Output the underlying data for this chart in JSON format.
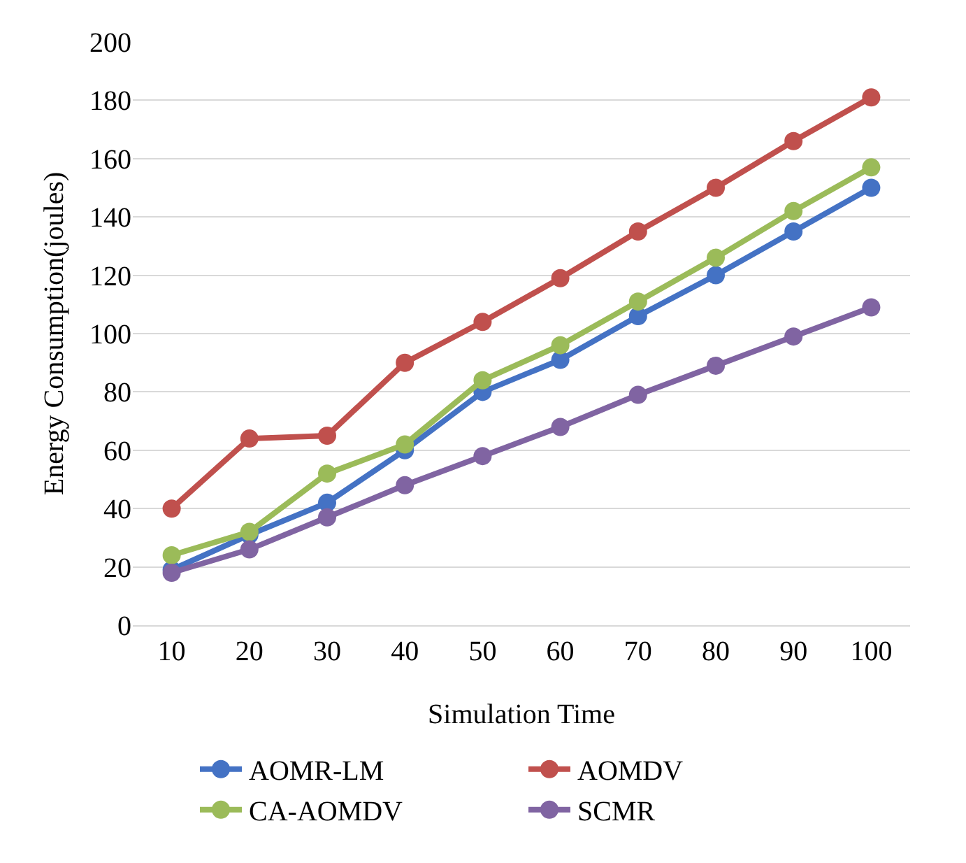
{
  "chart_data": {
    "type": "line",
    "xlabel": "Simulation Time",
    "ylabel": "Energy Consumption(joules)",
    "categories": [
      "10",
      "20",
      "30",
      "40",
      "50",
      "60",
      "70",
      "80",
      "90",
      "100"
    ],
    "series": [
      {
        "name": "AOMR-LM",
        "color": "#4472c4",
        "values": [
          19,
          31,
          42,
          60,
          80,
          91,
          106,
          120,
          135,
          150
        ]
      },
      {
        "name": "AOMDV",
        "color": "#c0504d",
        "values": [
          40,
          64,
          65,
          90,
          104,
          119,
          135,
          150,
          166,
          181
        ]
      },
      {
        "name": "CA-AOMDV",
        "color": "#9bbb59",
        "values": [
          24,
          32,
          52,
          62,
          84,
          96,
          111,
          126,
          142,
          157
        ]
      },
      {
        "name": "SCMR",
        "color": "#8064a2",
        "values": [
          18,
          26,
          37,
          48,
          58,
          68,
          79,
          89,
          99,
          109
        ]
      }
    ],
    "ylim": [
      0,
      200
    ],
    "yticks": [
      0,
      20,
      40,
      60,
      80,
      100,
      120,
      140,
      160,
      180,
      200
    ],
    "grid": "y",
    "legend": "bottom",
    "marker": "circle",
    "line_style": "solid"
  }
}
